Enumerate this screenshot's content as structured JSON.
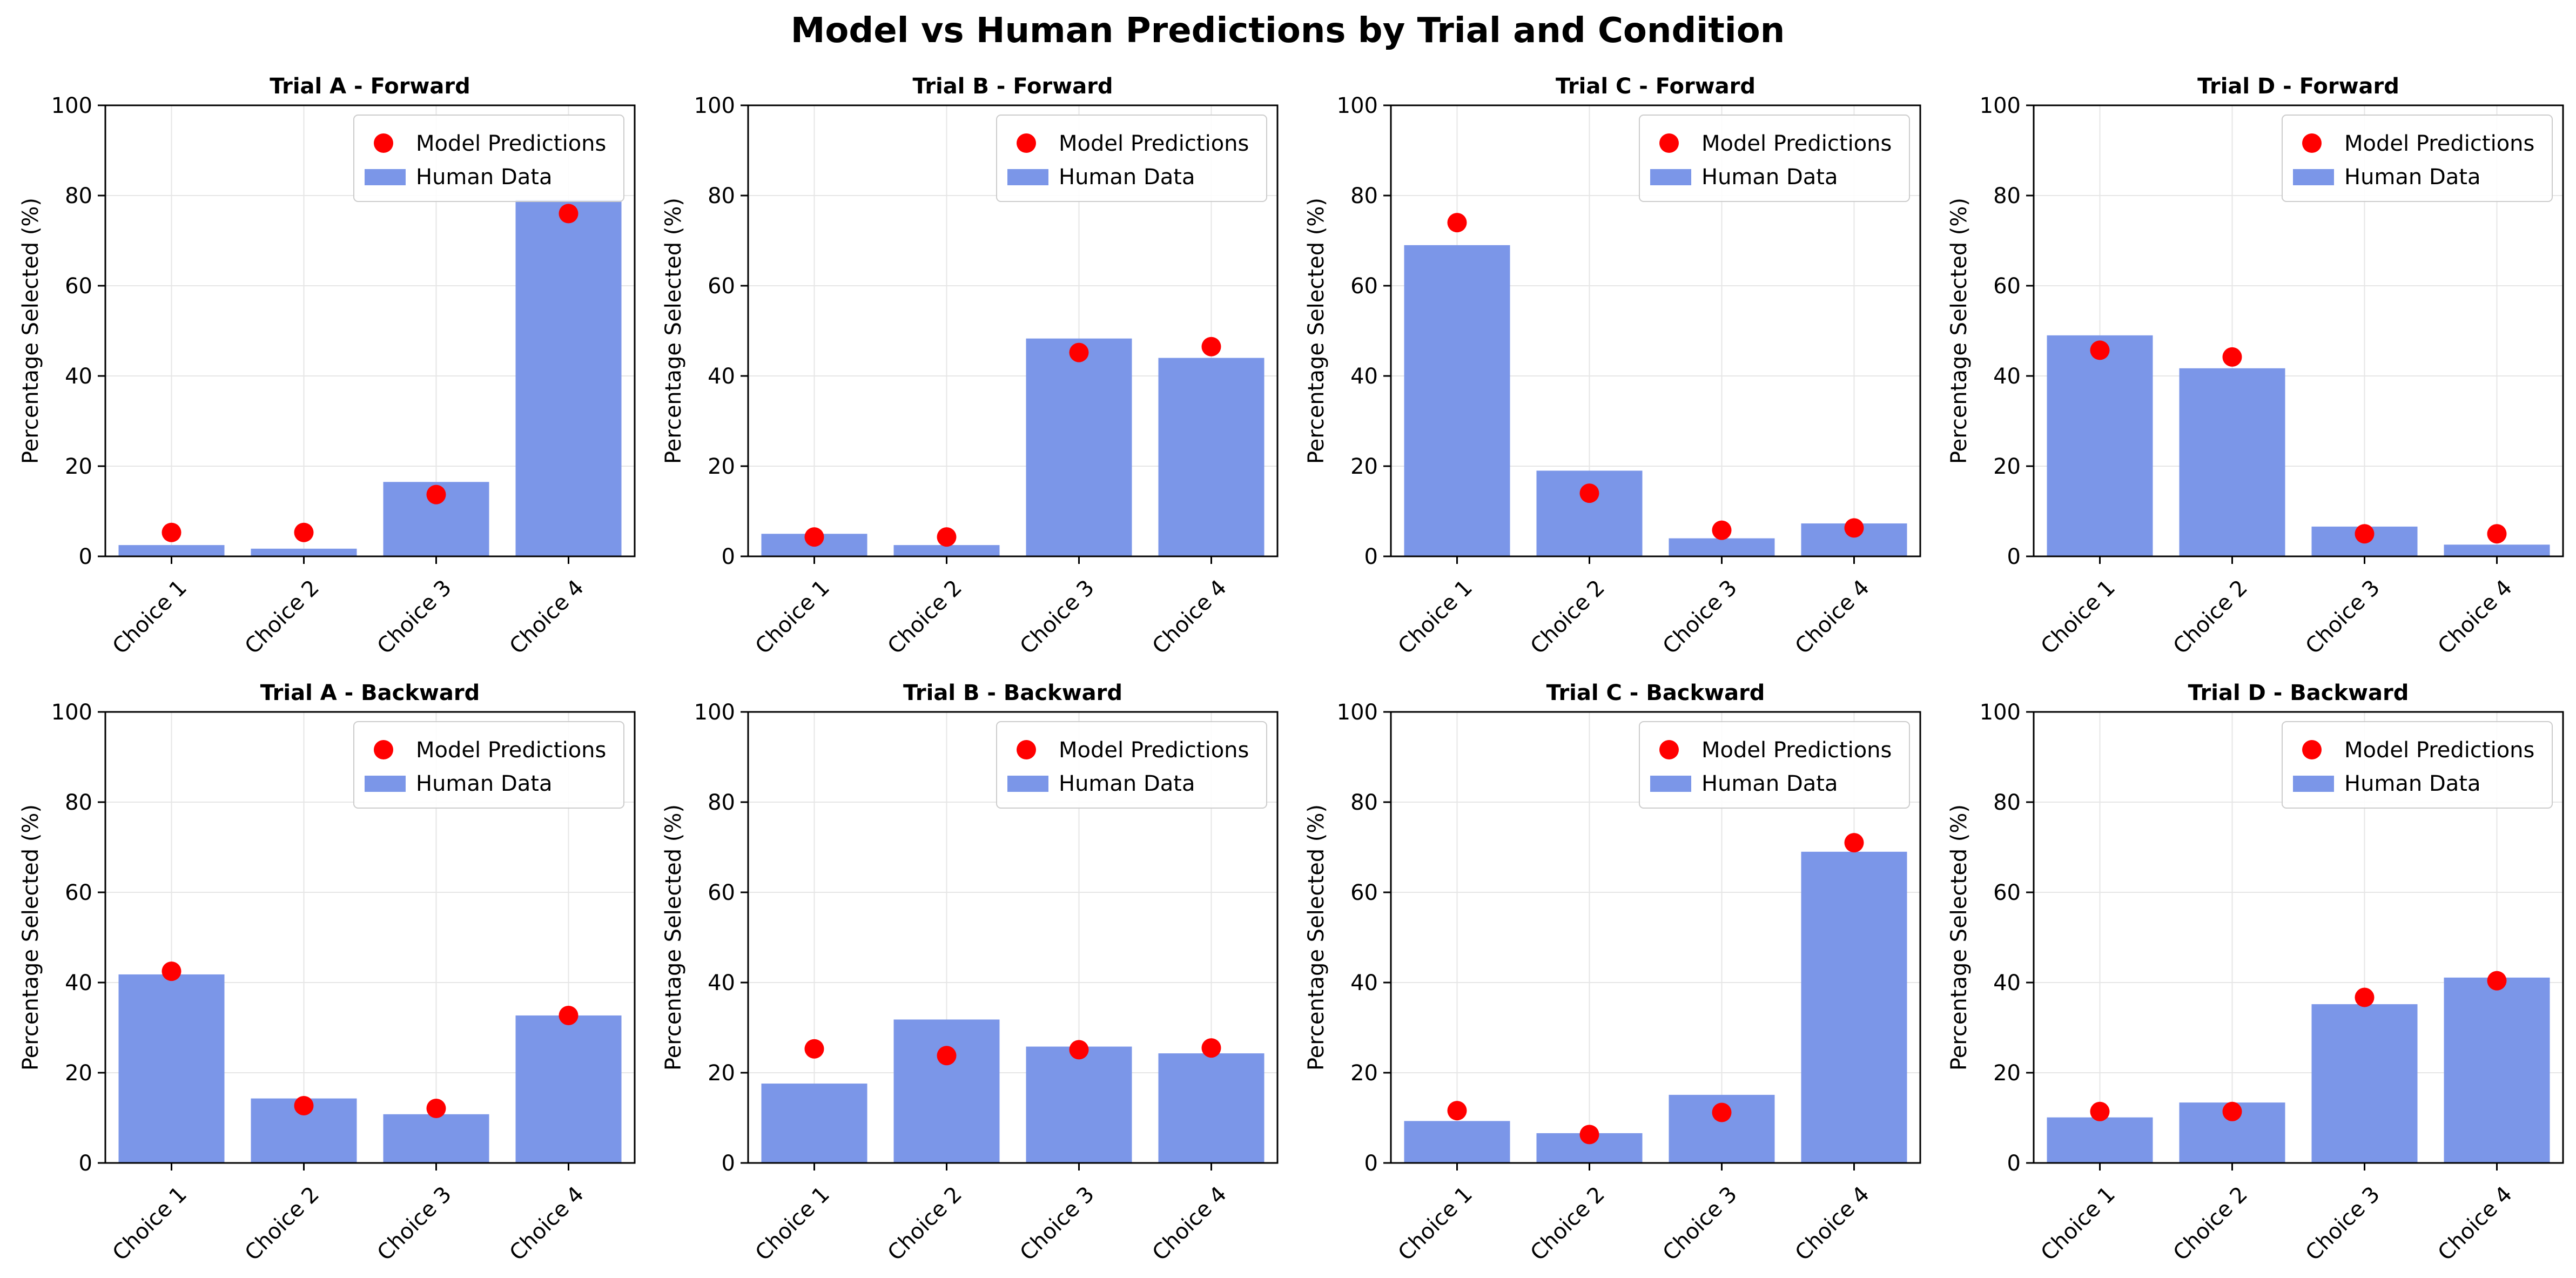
{
  "figure": {
    "title": "Model vs Human Predictions by Trial and Condition"
  },
  "colors": {
    "bar": "#7b96e8",
    "marker": "#ff0000",
    "axis": "#000000",
    "grid": "#e6e6e6",
    "text": "#000000"
  },
  "legend": {
    "model_label": "Model Predictions",
    "human_label": "Human Data"
  },
  "chart_data": [
    {
      "type": "bar",
      "title": "Trial A - Forward",
      "ylabel": "Percentage Selected (%)",
      "ylim": [
        0,
        100
      ],
      "yticks": [
        0,
        20,
        40,
        60,
        80,
        100
      ],
      "categories": [
        "Choice 1",
        "Choice 2",
        "Choice 3",
        "Choice 4"
      ],
      "series": [
        {
          "name": "Human Data",
          "kind": "bar",
          "values": [
            2.5,
            1.7,
            16.5,
            79
          ]
        },
        {
          "name": "Model Predictions",
          "kind": "marker",
          "values": [
            5.3,
            5.3,
            13.7,
            76
          ]
        }
      ],
      "grid": true,
      "legend": "upper-right"
    },
    {
      "type": "bar",
      "title": "Trial B - Forward",
      "ylabel": "Percentage Selected (%)",
      "ylim": [
        0,
        100
      ],
      "yticks": [
        0,
        20,
        40,
        60,
        80,
        100
      ],
      "categories": [
        "Choice 1",
        "Choice 2",
        "Choice 3",
        "Choice 4"
      ],
      "series": [
        {
          "name": "Human Data",
          "kind": "bar",
          "values": [
            5,
            2.5,
            48.3,
            44
          ]
        },
        {
          "name": "Model Predictions",
          "kind": "marker",
          "values": [
            4.3,
            4.3,
            45.2,
            46.5
          ]
        }
      ],
      "grid": true,
      "legend": "upper-right"
    },
    {
      "type": "bar",
      "title": "Trial C - Forward",
      "ylabel": "Percentage Selected (%)",
      "ylim": [
        0,
        100
      ],
      "yticks": [
        0,
        20,
        40,
        60,
        80,
        100
      ],
      "categories": [
        "Choice 1",
        "Choice 2",
        "Choice 3",
        "Choice 4"
      ],
      "series": [
        {
          "name": "Human Data",
          "kind": "bar",
          "values": [
            69,
            19,
            4,
            7.3
          ]
        },
        {
          "name": "Model Predictions",
          "kind": "marker",
          "values": [
            74,
            14,
            5.8,
            6.3
          ]
        }
      ],
      "grid": true,
      "legend": "upper-right"
    },
    {
      "type": "bar",
      "title": "Trial D - Forward",
      "ylabel": "Percentage Selected (%)",
      "ylim": [
        0,
        100
      ],
      "yticks": [
        0,
        20,
        40,
        60,
        80,
        100
      ],
      "categories": [
        "Choice 1",
        "Choice 2",
        "Choice 3",
        "Choice 4"
      ],
      "series": [
        {
          "name": "Human Data",
          "kind": "bar",
          "values": [
            49,
            41.7,
            6.6,
            2.6
          ]
        },
        {
          "name": "Model Predictions",
          "kind": "marker",
          "values": [
            45.7,
            44.2,
            5,
            5
          ]
        }
      ],
      "grid": true,
      "legend": "upper-right"
    },
    {
      "type": "bar",
      "title": "Trial A - Backward",
      "ylabel": "Percentage Selected (%)",
      "ylim": [
        0,
        100
      ],
      "yticks": [
        0,
        20,
        40,
        60,
        80,
        100
      ],
      "categories": [
        "Choice 1",
        "Choice 2",
        "Choice 3",
        "Choice 4"
      ],
      "series": [
        {
          "name": "Human Data",
          "kind": "bar",
          "values": [
            41.8,
            14.3,
            10.8,
            32.7
          ]
        },
        {
          "name": "Model Predictions",
          "kind": "marker",
          "values": [
            42.5,
            12.7,
            12.1,
            32.7
          ]
        }
      ],
      "grid": true,
      "legend": "upper-right"
    },
    {
      "type": "bar",
      "title": "Trial B - Backward",
      "ylabel": "Percentage Selected (%)",
      "ylim": [
        0,
        100
      ],
      "yticks": [
        0,
        20,
        40,
        60,
        80,
        100
      ],
      "categories": [
        "Choice 1",
        "Choice 2",
        "Choice 3",
        "Choice 4"
      ],
      "series": [
        {
          "name": "Human Data",
          "kind": "bar",
          "values": [
            17.6,
            31.8,
            25.8,
            24.3
          ]
        },
        {
          "name": "Model Predictions",
          "kind": "marker",
          "values": [
            25.3,
            23.8,
            25.1,
            25.5
          ]
        }
      ],
      "grid": true,
      "legend": "upper-right"
    },
    {
      "type": "bar",
      "title": "Trial C - Backward",
      "ylabel": "Percentage Selected (%)",
      "ylim": [
        0,
        100
      ],
      "yticks": [
        0,
        20,
        40,
        60,
        80,
        100
      ],
      "categories": [
        "Choice 1",
        "Choice 2",
        "Choice 3",
        "Choice 4"
      ],
      "series": [
        {
          "name": "Human Data",
          "kind": "bar",
          "values": [
            9.3,
            6.6,
            15.1,
            69
          ]
        },
        {
          "name": "Model Predictions",
          "kind": "marker",
          "values": [
            11.6,
            6.3,
            11.2,
            71
          ]
        }
      ],
      "grid": true,
      "legend": "upper-right"
    },
    {
      "type": "bar",
      "title": "Trial D - Backward",
      "ylabel": "Percentage Selected (%)",
      "ylim": [
        0,
        100
      ],
      "yticks": [
        0,
        20,
        40,
        60,
        80,
        100
      ],
      "categories": [
        "Choice 1",
        "Choice 2",
        "Choice 3",
        "Choice 4"
      ],
      "series": [
        {
          "name": "Human Data",
          "kind": "bar",
          "values": [
            10.1,
            13.4,
            35.2,
            41.1
          ]
        },
        {
          "name": "Model Predictions",
          "kind": "marker",
          "values": [
            11.4,
            11.4,
            36.7,
            40.4
          ]
        }
      ],
      "grid": true,
      "legend": "upper-right"
    }
  ]
}
